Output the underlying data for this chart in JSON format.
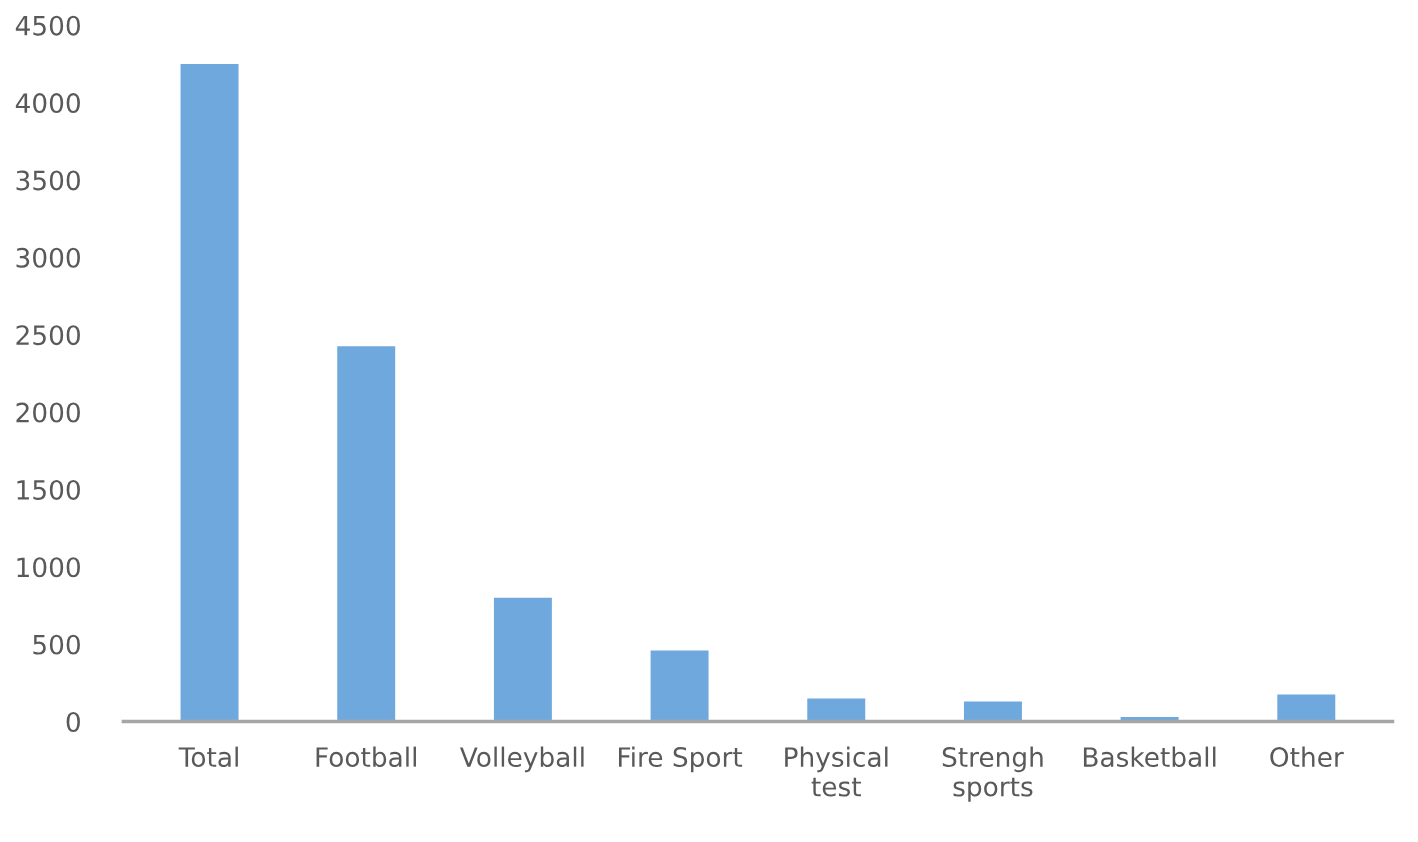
{
  "chart_data": {
    "type": "bar",
    "categories": [
      "Total",
      "Football",
      "Volleyball",
      "Fire Sport",
      "Physical\ntest",
      "Strengh\nsports",
      "Basketball",
      "Other"
    ],
    "values": [
      4250,
      2425,
      800,
      460,
      150,
      130,
      30,
      175
    ],
    "color": "#6fa8dc",
    "ylim": [
      0,
      4500
    ],
    "yticks": [
      0,
      500,
      1000,
      1500,
      2000,
      2500,
      3000,
      3500,
      4000,
      4500
    ],
    "grid": false,
    "legend": false
  }
}
